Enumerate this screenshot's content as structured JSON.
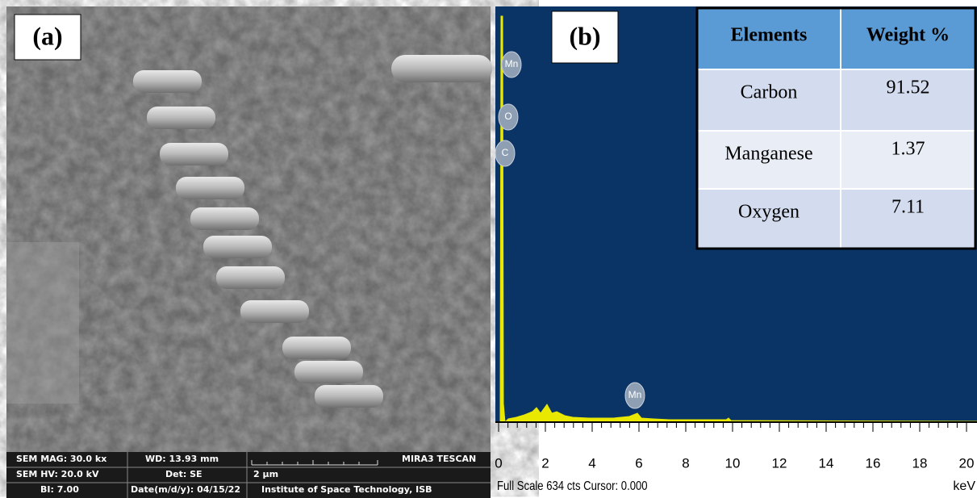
{
  "panel_a": {
    "label": "(a)",
    "info_bar": [
      [
        "SEM MAG: 30.0 kx",
        "WD: 13.93 mm",
        "MIRA3 TESCAN"
      ],
      [
        "SEM HV: 20.0 kV",
        "Det: SE",
        "2 μm"
      ],
      [
        "BI: 7.00",
        "Date(m/d/y): 04/15/22",
        "Institute of Space Technology, ISB"
      ]
    ]
  },
  "panel_b": {
    "label": "(b)",
    "peak_labels": [
      "Mn",
      "O",
      "C",
      "Mn"
    ],
    "x_ticks": [
      "0",
      "2",
      "4",
      "6",
      "8",
      "10",
      "12",
      "14",
      "16",
      "18",
      "20"
    ],
    "footer": "Full Scale 634 cts Cursor: 0.000",
    "unit": "keV",
    "table": {
      "header": [
        "Elements",
        "Weight %"
      ],
      "rows": [
        [
          "Carbon",
          "91.52"
        ],
        [
          "Manganese",
          "1.37"
        ],
        [
          "Oxygen",
          "7.11"
        ]
      ]
    }
  }
}
